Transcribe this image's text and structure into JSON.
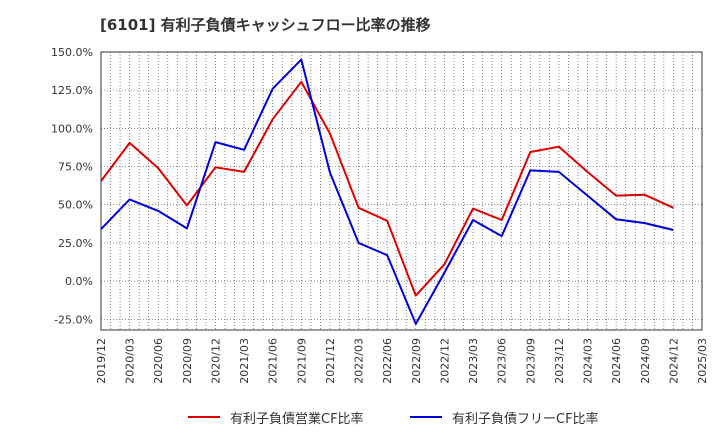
{
  "chart_data": {
    "type": "line",
    "title": "[6101]  有利子負債キャッシュフロー比率の推移",
    "x": [
      "2019/12",
      "2020/03",
      "2020/06",
      "2020/09",
      "2020/12",
      "2021/03",
      "2021/06",
      "2021/09",
      "2021/12",
      "2022/03",
      "2022/06",
      "2022/09",
      "2022/12",
      "2023/03",
      "2023/06",
      "2023/09",
      "2023/12",
      "2024/03",
      "2024/06",
      "2024/09",
      "2024/12",
      "2025/03"
    ],
    "y_ticks": [
      "150.0%",
      "125.0%",
      "100.0%",
      "75.0%",
      "50.0%",
      "25.0%",
      "0.0%",
      "-25.0%"
    ],
    "ylim": [
      -32,
      150
    ],
    "grid": true,
    "legend_position": "bottom",
    "series": [
      {
        "name": "有利子負債営業CF比率",
        "color": "#dd0000",
        "values": [
          65.5,
          90.5,
          74,
          49.5,
          74.5,
          71.5,
          106,
          130.5,
          96.5,
          48,
          39.5,
          -9.5,
          11,
          47.5,
          40,
          84.5,
          88,
          71.5,
          56,
          56.5,
          48,
          null
        ]
      },
      {
        "name": "有利子負債フリーCF比率",
        "color": "#0000dd",
        "values": [
          34,
          53.5,
          46,
          34.5,
          91,
          86,
          126,
          145,
          71,
          25,
          17,
          -28,
          5.5,
          40,
          29.5,
          72.5,
          71.5,
          56,
          40.5,
          38,
          33.5,
          null
        ]
      }
    ]
  }
}
